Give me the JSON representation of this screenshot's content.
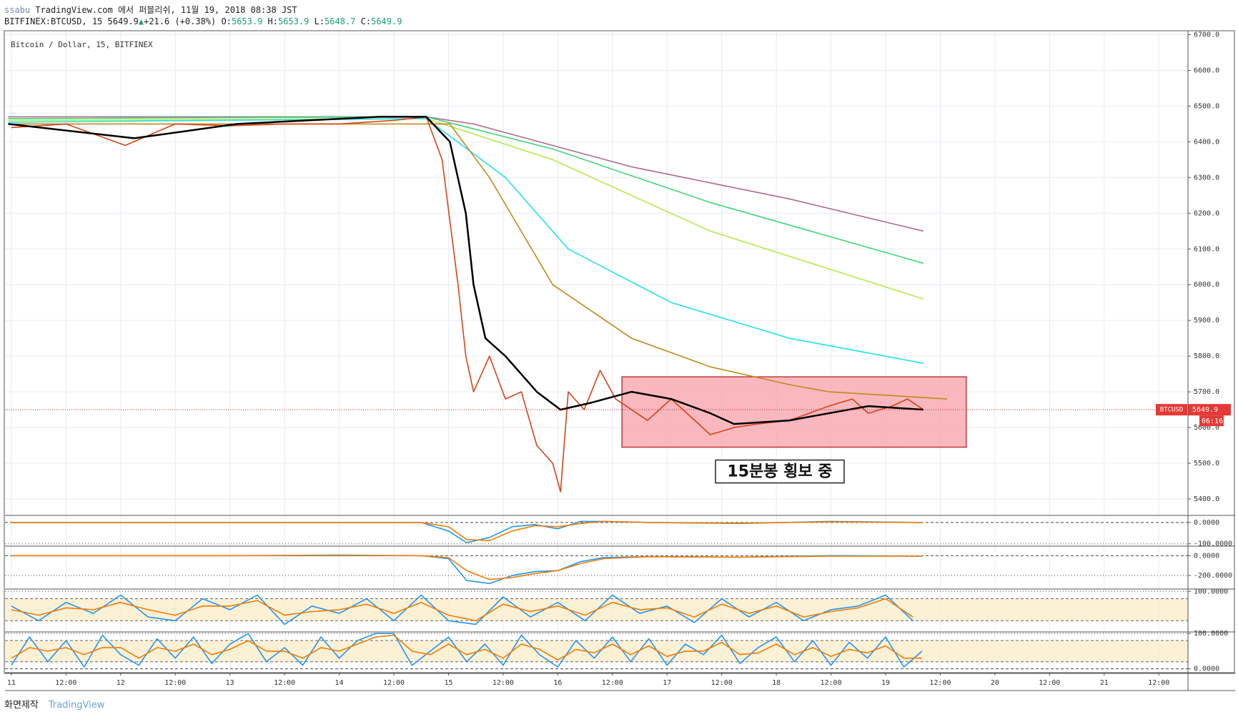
{
  "header": {
    "publisher": "ssabu",
    "published": "TradingView.com 에서 퍼블리쉬, 11월 19, 2018 08:38 JST",
    "symbol": "BITFINEX:BTCUSD, 15",
    "last": 5649.9,
    "arrow": "▲",
    "change": "+21.6 (+0.38%)",
    "o_label": "O:",
    "open": 5653.9,
    "h_label": "H:",
    "high": 5653.9,
    "l_label": "L:",
    "low": 5648.7,
    "c_label": "C:",
    "close": 5649.9
  },
  "footer": {
    "credit": "화면제작",
    "brand": "TradingView"
  },
  "chart_data": [
    {
      "type": "line",
      "title": "Bitcoin / Dollar, 15, BITFINEX",
      "grid": true,
      "xlim": [
        -1.4,
        258.4
      ],
      "ylim": [
        5354,
        6709
      ],
      "xticks": [
        {
          "value": 0,
          "label": "11"
        },
        {
          "value": 12,
          "label": "12:00"
        },
        {
          "value": 24,
          "label": "12"
        },
        {
          "value": 36,
          "label": "12:00"
        },
        {
          "value": 48,
          "label": "13"
        },
        {
          "value": 60,
          "label": "12:00"
        },
        {
          "value": 72,
          "label": "14"
        },
        {
          "value": 84,
          "label": "12:00"
        },
        {
          "value": 96,
          "label": "15"
        },
        {
          "value": 108,
          "label": "12:00"
        },
        {
          "value": 120,
          "label": "16"
        },
        {
          "value": 132,
          "label": "12:00"
        },
        {
          "value": 144,
          "label": "17"
        },
        {
          "value": 156,
          "label": "12:00"
        },
        {
          "value": 168,
          "label": "18"
        },
        {
          "value": 180,
          "label": "12:00"
        },
        {
          "value": 192,
          "label": "19"
        },
        {
          "value": 204,
          "label": "12:00"
        },
        {
          "value": 216,
          "label": "20"
        },
        {
          "value": 228,
          "label": "12:00"
        },
        {
          "value": 240,
          "label": "21"
        },
        {
          "value": 252,
          "label": "12:00"
        }
      ],
      "yticks": [
        {
          "value": 5400,
          "label": "5400.0"
        },
        {
          "value": 5500,
          "label": "5500.0"
        },
        {
          "value": 5600,
          "label": "5600.0"
        },
        {
          "value": 5700,
          "label": "5700.0"
        },
        {
          "value": 5800,
          "label": "5800.0"
        },
        {
          "value": 5900,
          "label": "5900.0"
        },
        {
          "value": 6000,
          "label": "6000.0"
        },
        {
          "value": 6100,
          "label": "6100.0"
        },
        {
          "value": 6200,
          "label": "6200.0"
        },
        {
          "value": 6300,
          "label": "6300.0"
        },
        {
          "value": 6400,
          "label": "6400.0"
        },
        {
          "value": 6500,
          "label": "6500.0"
        },
        {
          "value": 6600,
          "label": "6600.0"
        },
        {
          "value": 6700,
          "label": "6700.0"
        }
      ],
      "last_price": 5649.9,
      "countdown": "06:16",
      "annotation": {
        "text": "15분봉 횡보 중",
        "xlim": [
          134.1,
          209.7
        ],
        "ylim": [
          5545,
          5742
        ]
      },
      "series": [
        {
          "color": "#b06a8f",
          "x": [
            -0.7,
            91.1,
            101.5,
            136.2,
            170.9,
            200.3
          ],
          "values": [
            6470,
            6470,
            6450,
            6330,
            6240,
            6150
          ]
        },
        {
          "color": "#3fd67a",
          "x": [
            -0.7,
            91.1,
            118.9,
            153.5,
            200.3
          ],
          "values": [
            6465,
            6470,
            6380,
            6230,
            6060
          ]
        },
        {
          "color": "#b5e94a",
          "x": [
            -0.7,
            91.1,
            118.9,
            153.5,
            200.3
          ],
          "values": [
            6460,
            6465,
            6350,
            6150,
            5960
          ]
        },
        {
          "color": "#26e0f0",
          "x": [
            -0.7,
            91.1,
            108.5,
            122.3,
            144.9,
            170.9,
            200.3
          ],
          "values": [
            6455,
            6465,
            6300,
            6100,
            5950,
            5850,
            5780
          ]
        },
        {
          "color": "#c08a1a",
          "x": [
            -0.7,
            96.3,
            105,
            118.9,
            136.2,
            153.5,
            170.9,
            179.5,
            205.5
          ],
          "values": [
            6450,
            6450,
            6300,
            6000,
            5850,
            5770,
            5720,
            5700,
            5680
          ]
        },
        {
          "name": "BTCUSD",
          "color": "#d84315",
          "x": [
            0,
            12,
            25,
            36,
            48,
            60,
            72,
            84,
            91.1,
            94.6,
            98.1,
            99.8,
            101.5,
            105,
            108.5,
            112,
            115.4,
            118.9,
            120.6,
            122.3,
            125.8,
            129.3,
            132.7,
            136.2,
            139.7,
            144.9,
            150.1,
            153.5,
            158.7,
            163.9,
            170.9,
            179.5,
            184.7,
            188.2,
            193.4,
            196.8,
            200.3
          ],
          "values": [
            6440,
            6450,
            6390,
            6450,
            6445,
            6450,
            6450,
            6460,
            6470,
            6350,
            6000,
            5800,
            5700,
            5800,
            5680,
            5700,
            5550,
            5500,
            5420,
            5700,
            5650,
            5760,
            5680,
            5650,
            5620,
            5680,
            5620,
            5580,
            5600,
            5610,
            5620,
            5660,
            5680,
            5640,
            5660,
            5680,
            5650
          ]
        },
        {
          "color": "#000000",
          "x": [
            -0.7,
            27,
            49.6,
            80.7,
            91.1,
            96.3,
            99.8,
            101.5,
            104.1,
            108.5,
            115.4,
            120.6,
            127.5,
            136.2,
            144.9,
            153.5,
            158.7,
            170.9,
            179.5,
            188.2,
            200.3
          ],
          "values": [
            6450,
            6410,
            6450,
            6470,
            6470,
            6400,
            6200,
            6000,
            5850,
            5800,
            5700,
            5650,
            5670,
            5700,
            5680,
            5640,
            5610,
            5620,
            5640,
            5660,
            5650
          ]
        }
      ]
    },
    {
      "type": "line",
      "xlim": [
        -1.4,
        258.4
      ],
      "ylim": [
        -111,
        33
      ],
      "yticks": [
        {
          "value": 0,
          "label": "0.0000"
        },
        {
          "value": -100,
          "label": "-100.0000"
        }
      ],
      "series": [
        {
          "color": "#2196f3",
          "x": [
            0,
            24,
            48,
            72,
            90,
            96,
            100,
            105,
            110,
            115,
            120,
            125,
            130,
            140,
            160,
            180,
            200
          ],
          "values": [
            0,
            0,
            0,
            0,
            0,
            -40,
            -95,
            -70,
            -20,
            -10,
            -30,
            5,
            5,
            0,
            -5,
            5,
            0
          ]
        },
        {
          "color": "#f57c00",
          "x": [
            0,
            24,
            48,
            72,
            90,
            96,
            100,
            105,
            110,
            115,
            120,
            125,
            130,
            140,
            160,
            180,
            200
          ],
          "values": [
            0,
            0,
            0,
            0,
            0,
            -20,
            -80,
            -85,
            -40,
            -15,
            -20,
            -5,
            5,
            0,
            -3,
            3,
            0
          ]
        }
      ]
    },
    {
      "type": "line",
      "xlim": [
        -1.4,
        258.4
      ],
      "ylim": [
        -336,
        96
      ],
      "yticks": [
        {
          "value": 0,
          "label": "0.0000"
        },
        {
          "value": -200,
          "label": "-200.0000"
        }
      ],
      "series": [
        {
          "color": "#2196f3",
          "x": [
            0,
            24,
            48,
            72,
            90,
            96,
            100,
            105,
            110,
            115,
            120,
            125,
            130,
            140,
            160,
            180,
            200
          ],
          "values": [
            0,
            0,
            0,
            5,
            0,
            -30,
            -250,
            -280,
            -200,
            -160,
            -150,
            -60,
            -20,
            -10,
            -15,
            0,
            -5
          ]
        },
        {
          "color": "#f57c00",
          "x": [
            0,
            24,
            48,
            72,
            90,
            96,
            100,
            105,
            110,
            115,
            120,
            125,
            130,
            140,
            160,
            180,
            200
          ],
          "values": [
            0,
            0,
            0,
            0,
            0,
            -20,
            -150,
            -240,
            -220,
            -180,
            -150,
            -80,
            -30,
            -10,
            -15,
            -5,
            -5
          ]
        }
      ]
    },
    {
      "type": "line",
      "xlim": [
        -1.4,
        258.4
      ],
      "ylim": [
        -10.7,
        106.4
      ],
      "bands": [
        20,
        80
      ],
      "yticks": [
        {
          "value": 100,
          "label": "100.0000"
        }
      ],
      "series": [
        {
          "color": "#2196f3",
          "x": [
            0,
            6,
            12,
            18,
            24,
            30,
            36,
            42,
            48,
            54,
            60,
            66,
            72,
            78,
            84,
            90,
            96,
            102,
            108,
            114,
            120,
            126,
            132,
            138,
            144,
            150,
            156,
            162,
            168,
            174,
            180,
            186,
            192,
            198
          ],
          "values": [
            60,
            20,
            70,
            40,
            90,
            30,
            20,
            80,
            50,
            90,
            10,
            60,
            40,
            80,
            20,
            90,
            20,
            10,
            85,
            30,
            70,
            20,
            90,
            40,
            60,
            15,
            80,
            30,
            70,
            20,
            50,
            60,
            90,
            20
          ]
        },
        {
          "color": "#f57c00",
          "x": [
            0,
            6,
            12,
            18,
            24,
            30,
            36,
            42,
            48,
            54,
            60,
            66,
            72,
            78,
            84,
            90,
            96,
            102,
            108,
            114,
            120,
            126,
            132,
            138,
            144,
            150,
            156,
            162,
            168,
            174,
            180,
            186,
            192,
            198
          ],
          "values": [
            50,
            35,
            55,
            50,
            70,
            50,
            35,
            60,
            60,
            75,
            35,
            45,
            50,
            65,
            40,
            70,
            35,
            20,
            65,
            45,
            60,
            35,
            70,
            50,
            55,
            30,
            65,
            40,
            60,
            30,
            45,
            55,
            80,
            30
          ]
        }
      ]
    },
    {
      "type": "line",
      "xlim": [
        -1.4,
        258.4
      ],
      "ylim": [
        -11,
        104.4
      ],
      "bands": [
        20,
        80
      ],
      "yticks": [
        {
          "value": 100,
          "label": "100.0000"
        },
        {
          "value": 0,
          "label": "0.0000"
        }
      ],
      "series": [
        {
          "color": "#2196f3",
          "x": [
            0,
            4,
            8,
            12,
            16,
            20,
            24,
            28,
            32,
            36,
            40,
            44,
            48,
            52,
            56,
            60,
            64,
            68,
            72,
            76,
            80,
            84,
            88,
            92,
            96,
            100,
            104,
            108,
            112,
            116,
            120,
            124,
            128,
            132,
            136,
            140,
            144,
            148,
            152,
            156,
            160,
            164,
            168,
            172,
            176,
            180,
            184,
            188,
            192,
            196,
            200
          ],
          "values": [
            10,
            90,
            20,
            80,
            5,
            95,
            40,
            10,
            85,
            30,
            90,
            15,
            70,
            100,
            20,
            60,
            10,
            90,
            30,
            80,
            100,
            100,
            10,
            50,
            90,
            20,
            70,
            10,
            95,
            40,
            5,
            80,
            30,
            90,
            20,
            85,
            10,
            70,
            40,
            95,
            15,
            60,
            90,
            20,
            80,
            10,
            75,
            30,
            90,
            5,
            50
          ]
        },
        {
          "color": "#f57c00",
          "x": [
            0,
            4,
            8,
            12,
            16,
            20,
            24,
            28,
            32,
            36,
            40,
            44,
            48,
            52,
            56,
            60,
            64,
            68,
            72,
            76,
            80,
            84,
            88,
            92,
            96,
            100,
            104,
            108,
            112,
            116,
            120,
            124,
            128,
            132,
            136,
            140,
            144,
            148,
            152,
            156,
            160,
            164,
            168,
            172,
            176,
            180,
            184,
            188,
            192,
            196,
            200
          ],
          "values": [
            30,
            60,
            50,
            60,
            40,
            60,
            60,
            30,
            60,
            50,
            70,
            40,
            55,
            80,
            50,
            50,
            30,
            60,
            50,
            70,
            90,
            95,
            50,
            40,
            70,
            40,
            55,
            30,
            70,
            55,
            25,
            55,
            45,
            70,
            40,
            65,
            35,
            50,
            50,
            75,
            40,
            45,
            70,
            40,
            60,
            35,
            55,
            45,
            65,
            30,
            30
          ]
        }
      ]
    }
  ]
}
